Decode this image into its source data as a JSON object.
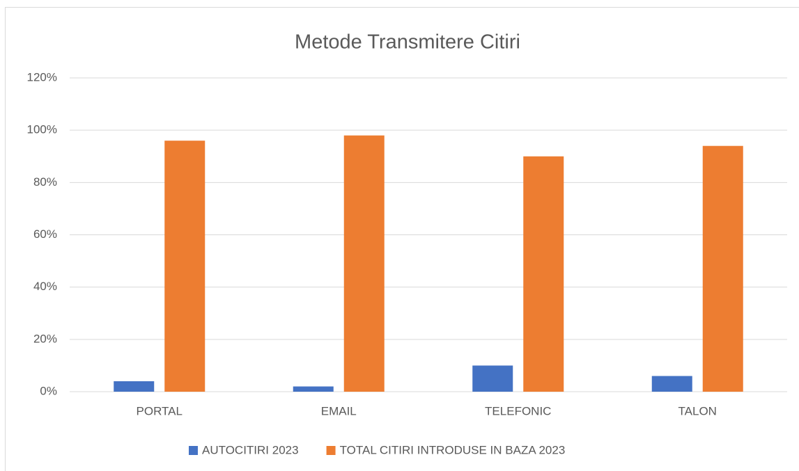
{
  "chart_data": {
    "type": "bar",
    "title": "Metode Transmitere Citiri",
    "categories": [
      "PORTAL",
      "EMAIL",
      "TELEFONIC",
      "TALON"
    ],
    "series": [
      {
        "name": "AUTOCITIRI 2023",
        "color": "#4472c4",
        "values": [
          4,
          2,
          10,
          6
        ]
      },
      {
        "name": "TOTAL CITIRI INTRODUSE IN BAZA 2023",
        "color": "#ed7d31",
        "values": [
          96,
          98,
          90,
          94
        ]
      }
    ],
    "ylim": [
      0,
      120
    ],
    "yticks": [
      {
        "value": 0,
        "label": "0%"
      },
      {
        "value": 20,
        "label": "20%"
      },
      {
        "value": 40,
        "label": "40%"
      },
      {
        "value": 60,
        "label": "60%"
      },
      {
        "value": 80,
        "label": "80%"
      },
      {
        "value": 100,
        "label": "100%"
      },
      {
        "value": 120,
        "label": "120%"
      }
    ],
    "grid": true,
    "legend": "bottom"
  }
}
